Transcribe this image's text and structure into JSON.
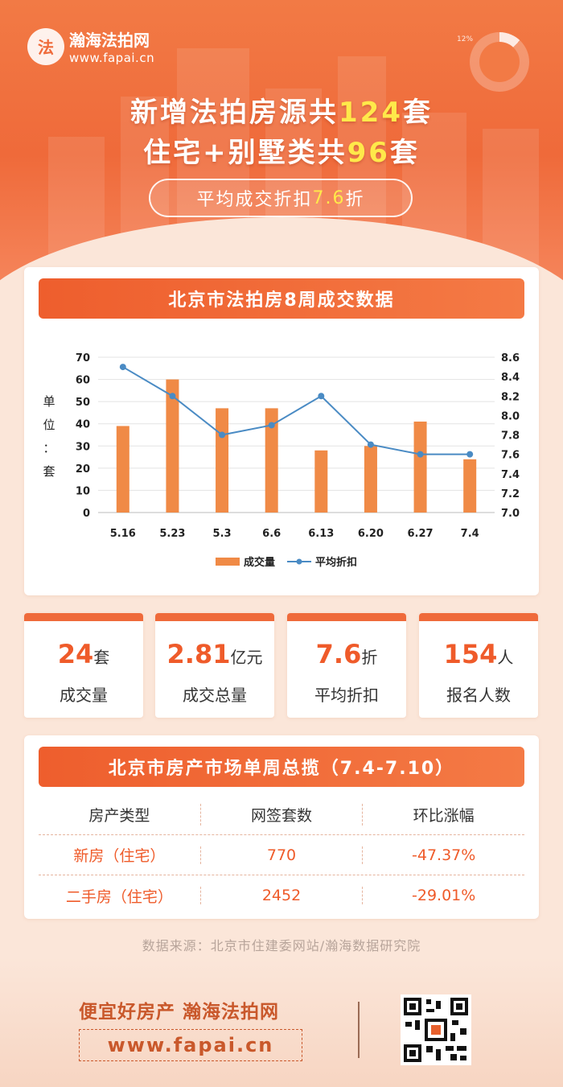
{
  "header": {
    "brand_name": "瀚海法拍网",
    "brand_url": "www.fapai.cn",
    "seal_glyph": "法",
    "donut_percent": "12%",
    "line1_prefix": "新增法拍房源共",
    "line1_number": "124",
    "line1_suffix": "套",
    "line2_prefix": "住宅+别墅类共",
    "line2_number": "96",
    "line2_suffix": "套",
    "discount_prefix": "平均成交折扣",
    "discount_value": "7.6",
    "discount_suffix": "折"
  },
  "chart_section": {
    "title": "北京市法拍房8周成交数据",
    "unit_label": [
      "单",
      "位",
      "：",
      "套"
    ]
  },
  "chart_data": {
    "type": "bar",
    "categories": [
      "5.16",
      "5.23",
      "5.3",
      "6.6",
      "6.13",
      "6.20",
      "6.27",
      "7.4"
    ],
    "series": [
      {
        "name": "成交量",
        "type": "bar",
        "axis": "left",
        "values": [
          39,
          60,
          47,
          47,
          28,
          30,
          41,
          24
        ]
      },
      {
        "name": "平均折扣",
        "type": "line",
        "axis": "right",
        "values": [
          8.5,
          8.2,
          7.8,
          7.9,
          8.2,
          7.7,
          7.6,
          7.6
        ]
      }
    ],
    "ylabel": "单位：套",
    "ylim_left": [
      0,
      70
    ],
    "yticks_left": [
      0,
      10,
      20,
      30,
      40,
      50,
      60,
      70
    ],
    "ylim_right": [
      7.0,
      8.6
    ],
    "yticks_right": [
      "7.0",
      "7.2",
      "7.4",
      "7.6",
      "7.8",
      "8.0",
      "8.2",
      "8.4",
      "8.6"
    ],
    "grid": true,
    "legend": "bottom-center",
    "colors": {
      "bar": "#f08a46",
      "line": "#4a8bc4"
    }
  },
  "stats": [
    {
      "value": "24",
      "unit": "套",
      "label": "成交量"
    },
    {
      "value": "2.81",
      "unit": "亿元",
      "label": "成交总量"
    },
    {
      "value": "7.6",
      "unit": "折",
      "label": "平均折扣"
    },
    {
      "value": "154",
      "unit": "人",
      "label": "报名人数"
    }
  ],
  "market": {
    "title": "北京市房产市场单周总揽（7.4-7.10）",
    "headers": [
      "房产类型",
      "网签套数",
      "环比涨幅"
    ],
    "rows": [
      [
        "新房（住宅）",
        "770",
        "-47.37%"
      ],
      [
        "二手房（住宅）",
        "2452",
        "-29.01%"
      ]
    ]
  },
  "source": "数据来源：北京市住建委网站/瀚海数据研究院",
  "footer": {
    "slogan": "便宜好房产 瀚海法拍网",
    "url": "www.fapai.cn",
    "qr_icon": "qr-code-icon"
  },
  "colors": {
    "accent": "#ef6a3a",
    "highlight": "#ffe94a",
    "text_red": "#ef5b2a"
  }
}
